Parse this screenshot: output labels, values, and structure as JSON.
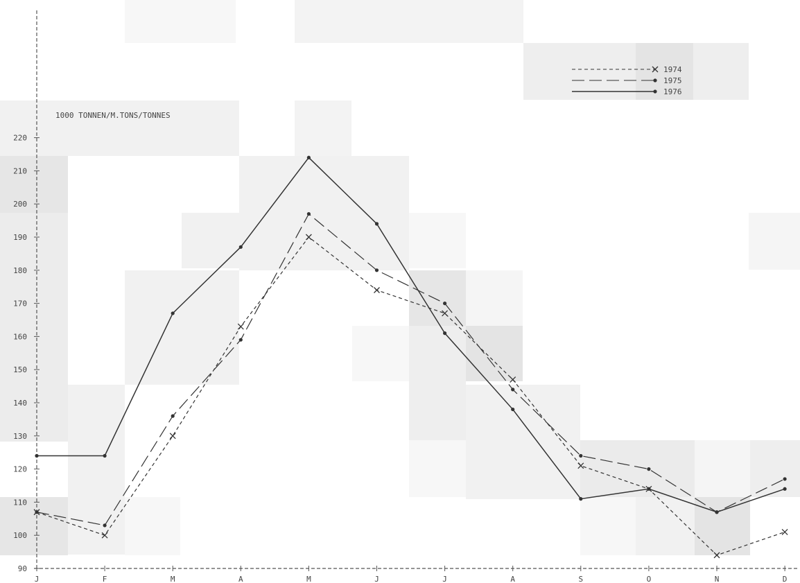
{
  "chart_data": {
    "type": "line",
    "unit_label": "1000 TONNEN/M.TONS/TONNES",
    "categories": [
      "J",
      "F",
      "M",
      "A",
      "M",
      "J",
      "J",
      "A",
      "S",
      "O",
      "N",
      "D"
    ],
    "ylim": [
      90,
      224
    ],
    "y_ticks": [
      90,
      100,
      110,
      120,
      130,
      140,
      150,
      160,
      170,
      180,
      190,
      200,
      210,
      220
    ],
    "y_tick_labels": [
      "90",
      "100",
      "110",
      "120",
      "130",
      "140",
      "150",
      "160",
      "170",
      "180",
      "190",
      "200",
      "210",
      "220"
    ],
    "grid": false,
    "legend_position": "top-right",
    "series": [
      {
        "name": "1974",
        "style": "short-dash",
        "marker": "x",
        "values": [
          107,
          100,
          130,
          163,
          190,
          174,
          167,
          147,
          121,
          114,
          94,
          101
        ]
      },
      {
        "name": "1975",
        "style": "long-dash",
        "marker": "dot",
        "values": [
          107,
          103,
          136,
          159,
          197,
          180,
          170,
          144,
          124,
          120,
          107,
          117
        ]
      },
      {
        "name": "1976",
        "style": "solid",
        "marker": "dot",
        "values": [
          124,
          124,
          167,
          187,
          214,
          194,
          161,
          138,
          111,
          114,
          107,
          114
        ]
      }
    ]
  }
}
